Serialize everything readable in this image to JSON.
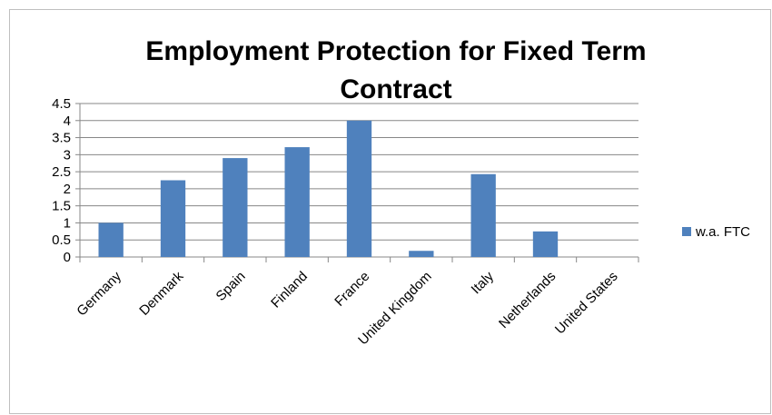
{
  "chart_data": {
    "type": "bar",
    "title_lines": [
      "Employment Protection for Fixed Term",
      "Contract"
    ],
    "categories": [
      "Germany",
      "Denmark",
      "Spain",
      "Finland",
      "France",
      "United Kingdom",
      "Italy",
      "Netherlands",
      "United States"
    ],
    "series": [
      {
        "name": "w.a. FTC",
        "color": "#4f81bd",
        "values": [
          1.0,
          2.25,
          2.9,
          3.22,
          4.0,
          0.18,
          2.43,
          0.75,
          0
        ]
      }
    ],
    "yticks": [
      "0",
      "0.5",
      "1",
      "1.5",
      "2",
      "2.5",
      "3",
      "3.5",
      "4",
      "4.5"
    ],
    "ylim": [
      0,
      4.5
    ],
    "grid": true,
    "legend_position": "right"
  }
}
